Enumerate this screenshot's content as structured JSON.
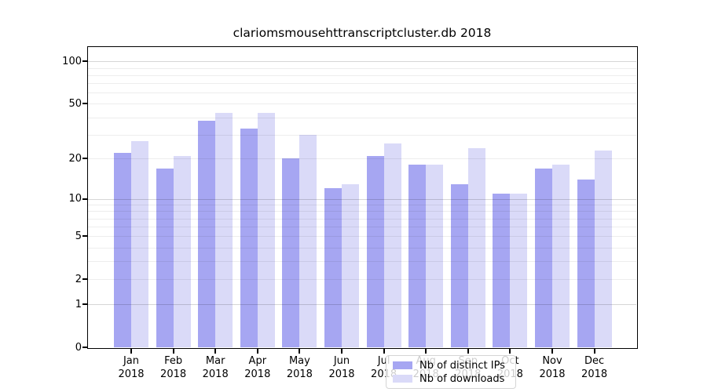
{
  "chart_data": {
    "type": "bar",
    "title": "clariomsmousehttranscriptcluster.db 2018",
    "categories": [
      "Jan",
      "Feb",
      "Mar",
      "Apr",
      "May",
      "Jun",
      "Jul",
      "Aug",
      "Sep",
      "Oct",
      "Nov",
      "Dec"
    ],
    "x_year_label": "2018",
    "series": [
      {
        "name": "Nb of distinct IPs",
        "color": "#a6a6f2",
        "values": [
          22,
          17,
          38,
          33,
          20,
          12,
          21,
          18,
          13,
          11,
          17,
          14
        ]
      },
      {
        "name": "Nb of downloads",
        "color": "#dadaf8",
        "values": [
          27,
          21,
          43,
          43,
          30,
          13,
          26,
          18,
          24,
          11,
          18,
          23
        ]
      }
    ],
    "y_scale": "log1p",
    "ylim": [
      0,
      126
    ],
    "y_ticks": [
      0,
      1,
      2,
      5,
      10,
      20,
      50,
      100
    ],
    "gridlines_minor": [
      2,
      3,
      4,
      5,
      6,
      7,
      8,
      9,
      20,
      30,
      40,
      50,
      60,
      70,
      80,
      90
    ],
    "gridlines_major": [
      1,
      10,
      100
    ],
    "grid": "on",
    "legend_position": "bottom-center",
    "colors": {
      "axis": "#000000",
      "grid_minor": "rgba(0,0,0,0.07)",
      "grid_major": "rgba(0,0,0,0.16)"
    }
  }
}
